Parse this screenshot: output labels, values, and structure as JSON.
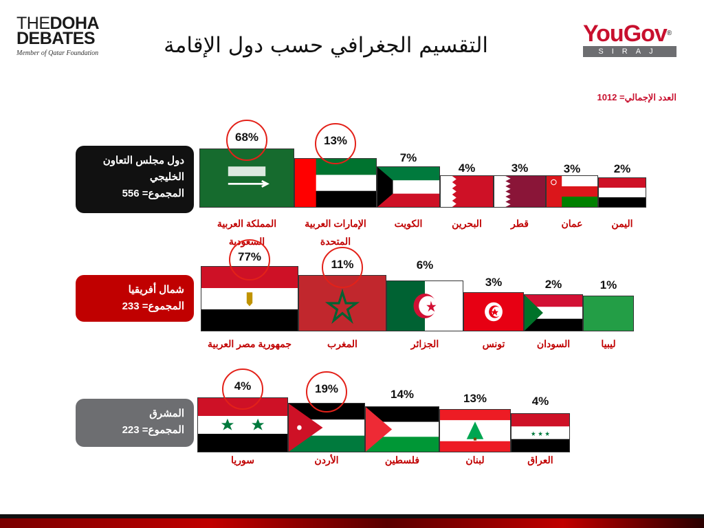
{
  "header": {
    "title": "التقسيم الجغرافي حسب دول الإقامة",
    "total_label": "العدد الإجمالي= 1012"
  },
  "logos": {
    "doha_line1_thin": "THE",
    "doha_line1_bold": "DOHA",
    "doha_line2": "DEBATES",
    "doha_line3": "Member of Qatar Foundation",
    "yougov_brand": "YouGov",
    "yougov_sub": "SIRAJ"
  },
  "groups": [
    {
      "label": "دول مجلس التعاون الخليجي",
      "total": "المجموع= 556"
    },
    {
      "label": "شمال أفريقيا",
      "total": "المجموع= 233"
    },
    {
      "label": "المشرق",
      "total": "المجموع= 223"
    }
  ],
  "colors": {
    "accent": "#c00000",
    "ring": "#e32119"
  },
  "chart_data": [
    {
      "type": "bar",
      "group": "دول مجلس التعاون الخليجي",
      "categories": [
        "المملكة العربية السعودية",
        "الإمارات العربية المتحدة",
        "الكويت",
        "البحرين",
        "قطر",
        "عمان",
        "اليمن"
      ],
      "values": [
        68,
        13,
        7,
        4,
        3,
        3,
        2
      ],
      "labels": [
        "68%",
        "13%",
        "7%",
        "4%",
        "3%",
        "3%",
        "2%"
      ],
      "highlighted": [
        0,
        1
      ]
    },
    {
      "type": "bar",
      "group": "شمال أفريقيا",
      "categories": [
        "جمهورية مصر العربية",
        "المغرب",
        "الجزائر",
        "تونس",
        "السودان",
        "ليبيا"
      ],
      "values": [
        77,
        11,
        6,
        3,
        2,
        1
      ],
      "labels": [
        "77%",
        "11%",
        "6%",
        "3%",
        "2%",
        "1%"
      ],
      "highlighted": [
        0,
        1
      ]
    },
    {
      "type": "bar",
      "group": "المشرق",
      "categories": [
        "سوريا",
        "الأردن",
        "فلسطين",
        "لبنان",
        "العراق"
      ],
      "values": [
        4,
        19,
        14,
        13,
        4
      ],
      "labels": [
        "4%",
        "19%",
        "14%",
        "13%",
        "4%"
      ],
      "highlighted": [
        0,
        1
      ]
    }
  ]
}
